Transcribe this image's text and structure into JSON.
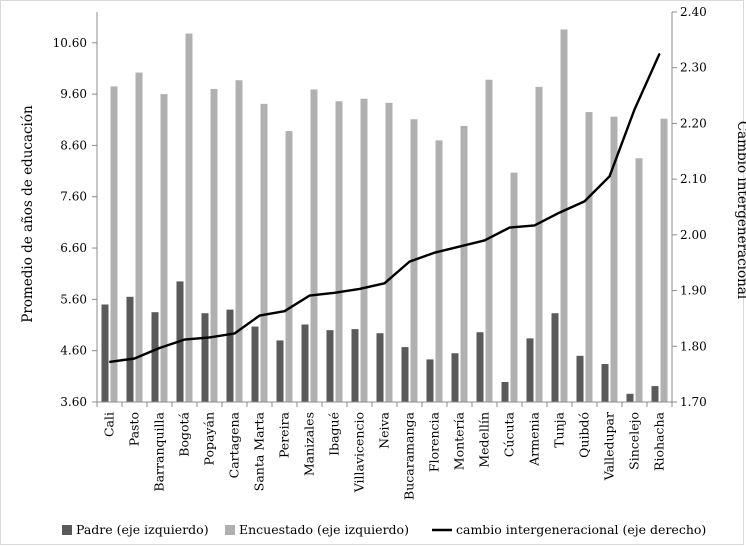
{
  "chart_data": {
    "type": "bar",
    "categories": [
      "Cali",
      "Pasto",
      "Barranquilla",
      "Bogotá",
      "Popayán",
      "Cartagena",
      "Santa Marta",
      "Pereira",
      "Manizales",
      "Ibagué",
      "Villavicencio",
      "Neiva",
      "Bucaramanga",
      "Florencia",
      "Montería",
      "Medellín",
      "Cúcuta",
      "Armenia",
      "Tunja",
      "Quibdó",
      "Valledupar",
      "Sincelejo",
      "Riohacha"
    ],
    "series": [
      {
        "name": "Padre (eje izquierdo)",
        "axis": "left",
        "type": "bar",
        "color": "#5a5a5a",
        "values": [
          5.5,
          5.65,
          5.35,
          5.95,
          5.33,
          5.4,
          5.07,
          4.8,
          5.11,
          5.0,
          5.02,
          4.94,
          4.67,
          4.43,
          4.55,
          4.96,
          3.99,
          4.84,
          5.33,
          4.5,
          4.34,
          3.76,
          3.91
        ]
      },
      {
        "name": "Encuestado (eje izquierdo)",
        "axis": "left",
        "type": "bar",
        "color": "#b0b0b0",
        "values": [
          9.75,
          10.02,
          9.6,
          10.78,
          9.7,
          9.87,
          9.41,
          8.88,
          9.69,
          9.46,
          9.51,
          9.43,
          9.11,
          8.7,
          8.98,
          9.88,
          8.07,
          9.74,
          10.86,
          9.25,
          9.16,
          8.35,
          9.12
        ]
      },
      {
        "name": "cambio intergeneracional (eje derecho)",
        "axis": "right",
        "type": "line",
        "color": "#000000",
        "values": [
          1.772,
          1.778,
          1.797,
          1.812,
          1.816,
          1.823,
          1.855,
          1.863,
          1.891,
          1.896,
          1.903,
          1.913,
          1.952,
          1.968,
          1.979,
          1.99,
          2.013,
          2.017,
          2.04,
          2.06,
          2.105,
          2.225,
          2.325
        ]
      }
    ],
    "y_left": {
      "label": "Promedio de años  de educación",
      "ticks": [
        "3.60",
        "4.60",
        "5.60",
        "6.60",
        "7.60",
        "8.60",
        "9.60",
        "10.60"
      ],
      "range": [
        3.6,
        11.2
      ]
    },
    "y_right": {
      "label": "Cambio intergeneracional",
      "ticks": [
        "1.70",
        "1.80",
        "1.90",
        "2.00",
        "2.10",
        "2.20",
        "2.30",
        "2.40"
      ],
      "range": [
        1.7,
        2.4
      ]
    },
    "legend_position": "bottom",
    "grid": false
  }
}
